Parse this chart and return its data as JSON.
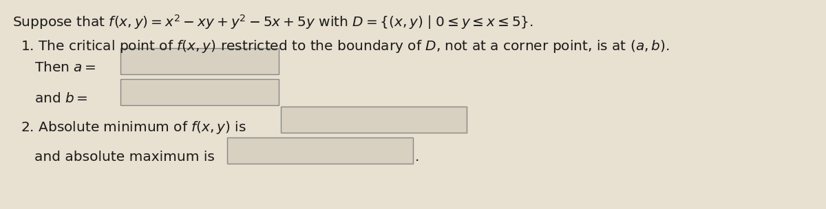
{
  "background_color": "#e8e0d0",
  "title_line": "Suppose that $f(x, y) = x^2 - xy + y^2 - 5x + 5y$ with $D = \\{(x, y) \\mid 0 \\leq y \\leq x \\leq 5\\}$.",
  "line1": "1. The critical point of $f(x, y)$ restricted to the boundary of $D$, not at a corner point, is at $(a, b)$.",
  "line2a": "Then $a =$ ",
  "line2b": "and $b =$ ",
  "line3a": "2. Absolute minimum of $f(x, y)$ is",
  "line3b": "and absolute maximum is",
  "box_facecolor": "#d8d0c0",
  "box_edgecolor": "#888888",
  "text_color": "#1a1a1a",
  "font_size": 14.5
}
